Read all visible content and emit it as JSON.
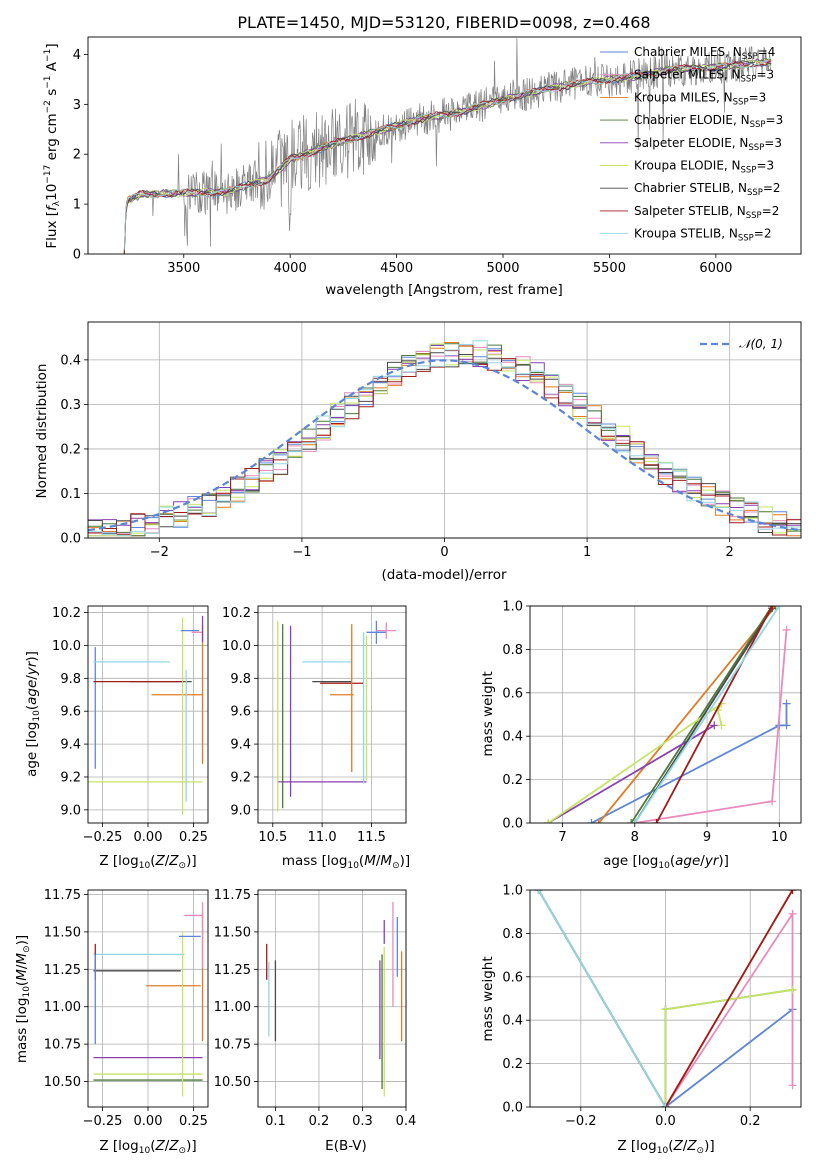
{
  "chart_data": [
    {
      "id": "spectrum",
      "type": "line",
      "title": "PLATE=1450, MJD=53120, FIBERID=0098, z=0.468",
      "xlabel": "wavelength [Angstrom, rest frame]",
      "ylabel": "Flux [fλ10⁻¹⁷ erg cm⁻² s⁻¹ A⁻¹]",
      "xlim": [
        3050,
        6400
      ],
      "ylim": [
        0,
        4.35
      ],
      "xticks": [
        3500,
        4000,
        4500,
        5000,
        5500,
        6000
      ],
      "yticks": [
        0,
        1,
        2,
        3,
        4
      ],
      "grid": false,
      "legend_position": "top-right",
      "data_color": "#808080",
      "series": [
        {
          "name": "Chabrier MILES, N",
          "sub": "SSP",
          "suffix": "=4",
          "color": "#5e86d8"
        },
        {
          "name": "Salpeter MILES, N",
          "sub": "SSP",
          "suffix": "=3",
          "color": "#e88bbf"
        },
        {
          "name": "Kroupa MILES, N",
          "sub": "SSP",
          "suffix": "=3",
          "color": "#e07b25"
        },
        {
          "name": "Chabrier ELODIE, N",
          "sub": "SSP",
          "suffix": "=3",
          "color": "#4c7a3a"
        },
        {
          "name": "Salpeter ELODIE, N",
          "sub": "SSP",
          "suffix": "=3",
          "color": "#8b3fb4"
        },
        {
          "name": "Kroupa ELODIE, N",
          "sub": "SSP",
          "suffix": "=3",
          "color": "#c6e466"
        },
        {
          "name": "Chabrier STELIB, N",
          "sub": "SSP",
          "suffix": "=2",
          "color": "#4a4a4a"
        },
        {
          "name": "Salpeter STELIB, N",
          "sub": "SSP",
          "suffix": "=2",
          "color": "#a01c1c"
        },
        {
          "name": "Kroupa STELIB, N",
          "sub": "SSP",
          "suffix": "=2",
          "color": "#93d7e2"
        }
      ],
      "model_shape": [
        [
          3220,
          0
        ],
        [
          3230,
          1.05
        ],
        [
          3300,
          1.2
        ],
        [
          3500,
          1.22
        ],
        [
          3700,
          1.25
        ],
        [
          3900,
          1.5
        ],
        [
          4000,
          1.9
        ],
        [
          4200,
          2.2
        ],
        [
          4400,
          2.45
        ],
        [
          4600,
          2.7
        ],
        [
          4800,
          2.85
        ],
        [
          5000,
          3.1
        ],
        [
          5200,
          3.3
        ],
        [
          5400,
          3.45
        ],
        [
          5600,
          3.55
        ],
        [
          5800,
          3.7
        ],
        [
          6000,
          3.75
        ],
        [
          6250,
          3.85
        ]
      ]
    },
    {
      "id": "residuals",
      "type": "bar",
      "xlabel": "(data-model)/error",
      "ylabel": "Normed distribution",
      "xlim": [
        -2.5,
        2.5
      ],
      "ylim": [
        0,
        0.485
      ],
      "xticks": [
        -2,
        -1,
        0,
        1,
        2
      ],
      "yticks": [
        0.0,
        0.1,
        0.2,
        0.3,
        0.4
      ],
      "grid": true,
      "legend_position": "top-right",
      "legend_label": "𝒩(0, 1)",
      "gaussian_color": "#5b86d6"
    },
    {
      "id": "age-vs-z",
      "type": "scatter",
      "xlabel": "Z [log₁₀(Z/Z⊙)]",
      "ylabel": "age  [log₁₀(age/yr)]",
      "xlim": [
        -0.33,
        0.33
      ],
      "ylim": [
        8.92,
        10.24
      ],
      "xticks": [
        -0.25,
        0.0,
        0.25
      ],
      "yticks": [
        9.0,
        9.2,
        9.4,
        9.6,
        9.8,
        10.0,
        10.2
      ],
      "grid": true
    },
    {
      "id": "age-vs-mass",
      "type": "scatter",
      "xlabel": "mass [log₁₀(M/M⊙)]",
      "ylabel": "",
      "xlim": [
        10.35,
        11.85
      ],
      "ylim": [
        8.92,
        10.24
      ],
      "xticks": [
        10.5,
        11.0,
        11.5
      ],
      "yticks": [
        9.0,
        9.2,
        9.4,
        9.6,
        9.8,
        10.0,
        10.2
      ],
      "grid": true
    },
    {
      "id": "mass-weight-vs-age",
      "type": "line",
      "xlabel": "age  [log₁₀(age/yr)]",
      "ylabel": "mass weight",
      "xlim": [
        6.55,
        10.3
      ],
      "ylim": [
        0,
        1
      ],
      "xticks": [
        7,
        8,
        9,
        10
      ],
      "yticks": [
        0.0,
        0.2,
        0.4,
        0.6,
        0.8,
        1.0
      ],
      "grid": true
    },
    {
      "id": "mass-vs-z",
      "type": "scatter",
      "xlabel": "Z [log₁₀(Z/Z⊙)]",
      "ylabel": "mass [log₁₀(M/M⊙)]",
      "xlim": [
        -0.33,
        0.33
      ],
      "ylim": [
        10.33,
        11.78
      ],
      "xticks": [
        -0.25,
        0.0,
        0.25
      ],
      "yticks": [
        10.5,
        10.75,
        11.0,
        11.25,
        11.5,
        11.75
      ],
      "grid": true
    },
    {
      "id": "mass-vs-ebv",
      "type": "scatter",
      "xlabel": "E(B-V)",
      "ylabel": "",
      "xlim": [
        0.06,
        0.4
      ],
      "ylim": [
        10.33,
        11.78
      ],
      "xticks": [
        0.1,
        0.2,
        0.3,
        0.4
      ],
      "yticks": [
        10.5,
        10.75,
        11.0,
        11.25,
        11.5,
        11.75
      ],
      "grid": true
    },
    {
      "id": "mass-weight-vs-z",
      "type": "line",
      "xlabel": "Z [log₁₀(Z/Z⊙)]",
      "ylabel": "mass weight",
      "xlim": [
        -0.32,
        0.32
      ],
      "ylim": [
        0,
        1
      ],
      "xticks": [
        -0.2,
        0.0,
        0.2
      ],
      "yticks": [
        0.0,
        0.2,
        0.4,
        0.6,
        0.8,
        1.0
      ],
      "grid": true
    }
  ],
  "err_age_z": [
    {
      "c": "#4a4a4a",
      "x": 0.07,
      "y": 9.78,
      "ex": 0.17,
      "ey": 0.0
    },
    {
      "c": "#5e86d8",
      "x": -0.29,
      "y": 9.62,
      "ex": 0.0,
      "ey": 0.37
    },
    {
      "c": "#a01c1c",
      "x": -0.05,
      "y": 9.78,
      "ex": 0.25,
      "ey": 0.0
    },
    {
      "c": "#93d7e2",
      "x": -0.09,
      "y": 9.9,
      "ex": 0.21,
      "ey": 0.0
    },
    {
      "c": "#e07b25",
      "x": 0.16,
      "y": 9.7,
      "ex": 0.14,
      "ey": 0.0
    },
    {
      "c": "#c6e466",
      "x": -0.05,
      "y": 9.17,
      "ex": 0.35,
      "ey": 0.0
    },
    {
      "c": "#c6e466",
      "x": 0.19,
      "y": 9.57,
      "ex": 0.0,
      "ey": 0.6
    },
    {
      "c": "#e88bbf",
      "x": 0.27,
      "y": 10.08,
      "ex": 0.03,
      "ey": 0.0
    },
    {
      "c": "#5e86d8",
      "x": 0.23,
      "y": 10.09,
      "ex": 0.05,
      "ey": 0.0
    },
    {
      "c": "#e07b25",
      "x": 0.3,
      "y": 9.7,
      "ex": 0.0,
      "ey": 0.42
    },
    {
      "c": "#93d7e2",
      "x": 0.21,
      "y": 9.45,
      "ex": 0.0,
      "ey": 0.4
    },
    {
      "c": "#8b3fb4",
      "x": 0.3,
      "y": 10.1,
      "ex": 0.0,
      "ey": 0.08
    }
  ],
  "err_age_mass": [
    {
      "c": "#8b3fb4",
      "x": 11.0,
      "y": 9.17,
      "ex": 0.45,
      "ey": 0.0
    },
    {
      "c": "#c6e466",
      "x": 10.55,
      "y": 9.57,
      "ex": 0.0,
      "ey": 0.58
    },
    {
      "c": "#4c7a3a",
      "x": 10.6,
      "y": 9.57,
      "ex": 0.0,
      "ey": 0.56
    },
    {
      "c": "#8b3fb4",
      "x": 10.68,
      "y": 9.6,
      "ex": 0.0,
      "ey": 0.52
    },
    {
      "c": "#93d7e2",
      "x": 11.05,
      "y": 9.9,
      "ex": 0.25,
      "ey": 0.0
    },
    {
      "c": "#4a4a4a",
      "x": 11.1,
      "y": 9.78,
      "ex": 0.2,
      "ey": 0.0
    },
    {
      "c": "#a01c1c",
      "x": 11.2,
      "y": 9.77,
      "ex": 0.22,
      "ey": 0.0
    },
    {
      "c": "#e07b25",
      "x": 11.2,
      "y": 9.7,
      "ex": 0.12,
      "ey": 0.0
    },
    {
      "c": "#e07b25",
      "x": 11.3,
      "y": 9.68,
      "ex": 0.0,
      "ey": 0.45
    },
    {
      "c": "#93d7e2",
      "x": 11.42,
      "y": 9.62,
      "ex": 0.0,
      "ey": 0.46
    },
    {
      "c": "#c6e466",
      "x": 11.45,
      "y": 9.62,
      "ex": 0.0,
      "ey": 0.44
    },
    {
      "c": "#5e86d8",
      "x": 11.55,
      "y": 10.08,
      "ex": 0.1,
      "ey": 0.07
    },
    {
      "c": "#e88bbf",
      "x": 11.65,
      "y": 10.09,
      "ex": 0.1,
      "ey": 0.05
    }
  ],
  "err_mass_z": [
    {
      "c": "#93d7e2",
      "x": -0.05,
      "y": 11.35,
      "ex": 0.25,
      "ey": 0.0
    },
    {
      "c": "#4a4a4a",
      "x": -0.06,
      "y": 11.24,
      "ex": 0.24,
      "ey": 0.0
    },
    {
      "c": "#a01c1c",
      "x": -0.29,
      "y": 11.3,
      "ex": 0.0,
      "ey": 0.12
    },
    {
      "c": "#5e86d8",
      "x": -0.29,
      "y": 11.05,
      "ex": 0.0,
      "ey": 0.3
    },
    {
      "c": "#e07b25",
      "x": 0.14,
      "y": 11.14,
      "ex": 0.15,
      "ey": 0.0
    },
    {
      "c": "#e07b25",
      "x": 0.3,
      "y": 11.2,
      "ex": 0.0,
      "ey": 0.43
    },
    {
      "c": "#8b3fb4",
      "x": 0.0,
      "y": 10.66,
      "ex": 0.3,
      "ey": 0.0
    },
    {
      "c": "#c6e466",
      "x": 0.0,
      "y": 10.55,
      "ex": 0.3,
      "ey": 0.0
    },
    {
      "c": "#4c7a3a",
      "x": 0.0,
      "y": 10.51,
      "ex": 0.3,
      "ey": 0.0
    },
    {
      "c": "#c6e466",
      "x": 0.19,
      "y": 10.95,
      "ex": 0.0,
      "ey": 0.55
    },
    {
      "c": "#e88bbf",
      "x": 0.25,
      "y": 11.61,
      "ex": 0.05,
      "ey": 0.0
    },
    {
      "c": "#5e86d8",
      "x": 0.23,
      "y": 11.47,
      "ex": 0.06,
      "ey": 0.0
    },
    {
      "c": "#e88bbf",
      "x": 0.3,
      "y": 11.48,
      "ex": 0.0,
      "ey": 0.22
    }
  ],
  "err_mass_ebv": [
    {
      "c": "#a01c1c",
      "x": 0.08,
      "y": 11.3,
      "ex": 0.0,
      "ey": 0.12
    },
    {
      "c": "#93d7e2",
      "x": 0.085,
      "y": 11.05,
      "ex": 0.0,
      "ey": 0.25
    },
    {
      "c": "#4a4a4a",
      "x": 0.1,
      "y": 11.04,
      "ex": 0.0,
      "ey": 0.27
    },
    {
      "c": "#8b3fb4",
      "x": 0.34,
      "y": 10.98,
      "ex": 0.0,
      "ey": 0.33
    },
    {
      "c": "#c6e466",
      "x": 0.35,
      "y": 10.9,
      "ex": 0.0,
      "ey": 0.5
    },
    {
      "c": "#4c7a3a",
      "x": 0.345,
      "y": 10.9,
      "ex": 0.0,
      "ey": 0.45
    },
    {
      "c": "#8b3fb4",
      "x": 0.35,
      "y": 11.5,
      "ex": 0.0,
      "ey": 0.08
    },
    {
      "c": "#e88bbf",
      "x": 0.37,
      "y": 11.35,
      "ex": 0.0,
      "ey": 0.35
    },
    {
      "c": "#5e86d8",
      "x": 0.38,
      "y": 11.4,
      "ex": 0.0,
      "ey": 0.2
    },
    {
      "c": "#e07b25",
      "x": 0.39,
      "y": 11.07,
      "ex": 0.0,
      "ey": 0.3
    }
  ],
  "mw_age_paths": [
    {
      "c": "#5e86d8",
      "pts": [
        [
          7.4,
          0.0
        ],
        [
          10.0,
          0.45
        ],
        [
          10.1,
          0.45
        ],
        [
          10.1,
          0.55
        ]
      ]
    },
    {
      "c": "#e88bbf",
      "pts": [
        [
          8.0,
          0.0
        ],
        [
          9.9,
          0.1
        ],
        [
          10.1,
          0.89
        ]
      ]
    },
    {
      "c": "#e07b25",
      "pts": [
        [
          7.5,
          0.0
        ],
        [
          9.95,
          1.0
        ]
      ]
    },
    {
      "c": "#4c7a3a",
      "pts": [
        [
          7.95,
          0.0
        ],
        [
          9.9,
          1.0
        ]
      ]
    },
    {
      "c": "#8b3fb4",
      "pts": [
        [
          6.8,
          0.0
        ],
        [
          9.1,
          0.45
        ]
      ]
    },
    {
      "c": "#c6e466",
      "pts": [
        [
          6.8,
          0.0
        ],
        [
          9.2,
          0.55
        ],
        [
          9.15,
          0.52
        ],
        [
          9.2,
          0.45
        ]
      ]
    },
    {
      "c": "#4a4a4a",
      "pts": [
        [
          8.0,
          0.0
        ],
        [
          9.9,
          0.99
        ]
      ]
    },
    {
      "c": "#a01c1c",
      "pts": [
        [
          8.3,
          0.0
        ],
        [
          9.9,
          1.0
        ]
      ]
    },
    {
      "c": "#93d7e2",
      "pts": [
        [
          8.0,
          0.0
        ],
        [
          10.0,
          1.0
        ]
      ]
    }
  ],
  "mw_z_paths": [
    {
      "c": "#5e86d8",
      "pts": [
        [
          0.0,
          0.0
        ],
        [
          0.3,
          0.45
        ]
      ]
    },
    {
      "c": "#e88bbf",
      "pts": [
        [
          0.0,
          0.0
        ],
        [
          0.3,
          0.89
        ],
        [
          0.3,
          0.1
        ]
      ]
    },
    {
      "c": "#e07b25",
      "pts": [
        [
          0.0,
          0.0
        ],
        [
          0.3,
          1.0
        ]
      ]
    },
    {
      "c": "#4c7a3a",
      "pts": [
        [
          -0.3,
          1.0
        ],
        [
          0.0,
          0.0
        ],
        [
          0.0,
          0.45
        ],
        [
          0.3,
          0.54
        ]
      ]
    },
    {
      "c": "#8b3fb4",
      "pts": [
        [
          0.0,
          0.0
        ],
        [
          0.0,
          0.45
        ]
      ]
    },
    {
      "c": "#c6e466",
      "pts": [
        [
          0.0,
          0.0
        ],
        [
          0.0,
          0.45
        ],
        [
          0.3,
          0.54
        ]
      ]
    },
    {
      "c": "#4a4a4a",
      "pts": [
        [
          -0.3,
          1.0
        ],
        [
          0.0,
          0.0
        ]
      ]
    },
    {
      "c": "#a01c1c",
      "pts": [
        [
          0.0,
          0.0
        ],
        [
          0.3,
          1.0
        ]
      ]
    },
    {
      "c": "#93d7e2",
      "pts": [
        [
          -0.3,
          1.0
        ],
        [
          0.0,
          0.0
        ]
      ]
    }
  ]
}
